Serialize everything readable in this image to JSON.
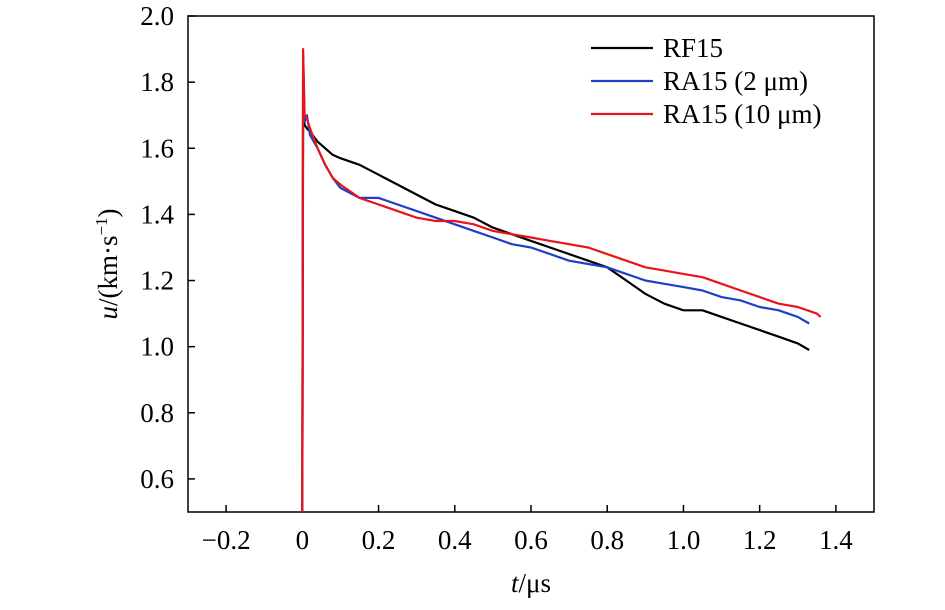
{
  "chart_data": {
    "type": "line",
    "title": "",
    "xlabel_var": "t",
    "xlabel_unit": "/μs",
    "ylabel_var": "u",
    "ylabel_unit_main": "/(km·s",
    "ylabel_unit_sup": "−1",
    "ylabel_unit_close": ")",
    "xlim": [
      -0.3,
      1.5
    ],
    "ylim": [
      0.5,
      2.0
    ],
    "xticks": [
      -0.2,
      0,
      0.2,
      0.4,
      0.6,
      0.8,
      1.0,
      1.2,
      1.4
    ],
    "xtick_labels": [
      "−0.2",
      "0",
      "0.2",
      "0.4",
      "0.6",
      "0.8",
      "1.0",
      "1.2",
      "1.4"
    ],
    "yticks": [
      0.6,
      0.8,
      1.0,
      1.2,
      1.4,
      1.6,
      1.8,
      2.0
    ],
    "ytick_labels": [
      "0.6",
      "0.8",
      "1.0",
      "1.2",
      "1.4",
      "1.6",
      "1.8",
      "2.0"
    ],
    "grid": false,
    "legend_position": "top-right",
    "series": [
      {
        "name": "RF15",
        "color": "#000000",
        "x": [
          0.0,
          0.002,
          0.006,
          0.012,
          0.02,
          0.04,
          0.06,
          0.08,
          0.1,
          0.15,
          0.2,
          0.25,
          0.3,
          0.35,
          0.4,
          0.45,
          0.5,
          0.55,
          0.6,
          0.65,
          0.7,
          0.75,
          0.8,
          0.85,
          0.9,
          0.95,
          1.0,
          1.05,
          1.1,
          1.15,
          1.2,
          1.25,
          1.3,
          1.33
        ],
        "y": [
          0.5,
          1.71,
          1.67,
          1.66,
          1.65,
          1.62,
          1.6,
          1.58,
          1.57,
          1.55,
          1.52,
          1.49,
          1.46,
          1.43,
          1.41,
          1.39,
          1.36,
          1.34,
          1.32,
          1.3,
          1.28,
          1.26,
          1.24,
          1.2,
          1.16,
          1.13,
          1.11,
          1.11,
          1.09,
          1.07,
          1.05,
          1.03,
          1.01,
          0.99
        ]
      },
      {
        "name": "RA15 (2 μm)",
        "color": "#1f3fc8",
        "x": [
          0.0,
          0.002,
          0.006,
          0.012,
          0.02,
          0.04,
          0.06,
          0.08,
          0.1,
          0.15,
          0.2,
          0.25,
          0.3,
          0.35,
          0.4,
          0.45,
          0.5,
          0.55,
          0.6,
          0.65,
          0.7,
          0.75,
          0.8,
          0.85,
          0.9,
          0.95,
          1.0,
          1.05,
          1.1,
          1.15,
          1.2,
          1.25,
          1.3,
          1.33
        ],
        "y": [
          0.5,
          1.88,
          1.68,
          1.7,
          1.64,
          1.6,
          1.55,
          1.51,
          1.48,
          1.45,
          1.45,
          1.43,
          1.41,
          1.39,
          1.37,
          1.35,
          1.33,
          1.31,
          1.3,
          1.28,
          1.26,
          1.25,
          1.24,
          1.22,
          1.2,
          1.19,
          1.18,
          1.17,
          1.15,
          1.14,
          1.12,
          1.11,
          1.09,
          1.07
        ]
      },
      {
        "name": "RA15 (10 μm)",
        "color": "#e8141c",
        "x": [
          0.0,
          0.002,
          0.006,
          0.012,
          0.02,
          0.04,
          0.06,
          0.08,
          0.1,
          0.15,
          0.2,
          0.25,
          0.3,
          0.35,
          0.4,
          0.45,
          0.5,
          0.55,
          0.6,
          0.65,
          0.7,
          0.75,
          0.8,
          0.85,
          0.9,
          0.95,
          1.0,
          1.05,
          1.1,
          1.15,
          1.2,
          1.25,
          1.3,
          1.35,
          1.36
        ],
        "y": [
          0.5,
          1.9,
          1.7,
          1.69,
          1.66,
          1.6,
          1.55,
          1.51,
          1.49,
          1.45,
          1.43,
          1.41,
          1.39,
          1.38,
          1.38,
          1.37,
          1.35,
          1.34,
          1.33,
          1.32,
          1.31,
          1.3,
          1.28,
          1.26,
          1.24,
          1.23,
          1.22,
          1.21,
          1.19,
          1.17,
          1.15,
          1.13,
          1.12,
          1.1,
          1.09
        ]
      }
    ]
  }
}
